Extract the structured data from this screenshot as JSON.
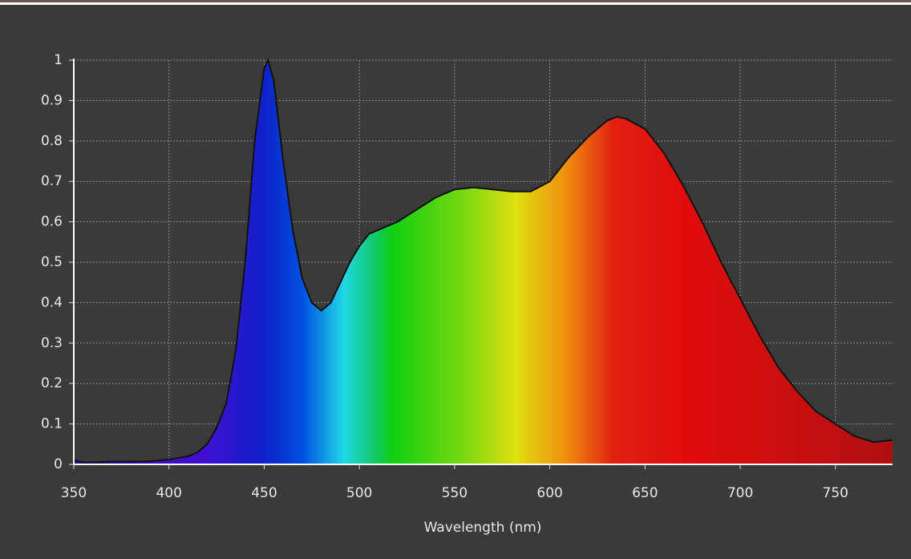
{
  "chart_data": {
    "type": "area",
    "x_label": "Wavelength (nm)",
    "x": [
      350,
      355,
      360,
      370,
      380,
      390,
      400,
      410,
      415,
      420,
      425,
      430,
      435,
      440,
      445,
      450,
      452,
      455,
      460,
      465,
      470,
      475,
      480,
      485,
      490,
      495,
      500,
      505,
      510,
      515,
      520,
      530,
      540,
      550,
      560,
      570,
      580,
      590,
      600,
      610,
      620,
      630,
      635,
      640,
      650,
      660,
      670,
      680,
      690,
      700,
      710,
      720,
      730,
      740,
      750,
      760,
      770,
      780
    ],
    "values": [
      0.01,
      0.005,
      0.005,
      0.007,
      0.007,
      0.008,
      0.012,
      0.02,
      0.03,
      0.05,
      0.09,
      0.15,
      0.28,
      0.5,
      0.8,
      0.98,
      1.0,
      0.95,
      0.75,
      0.58,
      0.46,
      0.4,
      0.38,
      0.4,
      0.45,
      0.5,
      0.54,
      0.57,
      0.58,
      0.59,
      0.6,
      0.63,
      0.66,
      0.68,
      0.685,
      0.68,
      0.675,
      0.675,
      0.7,
      0.76,
      0.81,
      0.85,
      0.86,
      0.855,
      0.83,
      0.77,
      0.69,
      0.6,
      0.5,
      0.41,
      0.32,
      0.24,
      0.18,
      0.13,
      0.1,
      0.07,
      0.055,
      0.06
    ],
    "xlim": [
      350,
      780
    ],
    "ylim": [
      0,
      1
    ],
    "xticks": [
      350,
      400,
      450,
      500,
      550,
      600,
      650,
      700,
      750
    ],
    "yticks": [
      0,
      0.1,
      0.2,
      0.3,
      0.4,
      0.5,
      0.6,
      0.7,
      0.8,
      0.9,
      1
    ],
    "grid": true
  }
}
